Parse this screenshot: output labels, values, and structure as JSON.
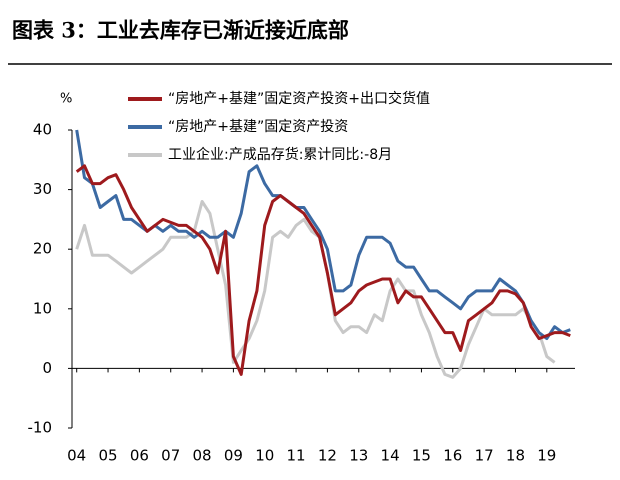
{
  "chart_data": {
    "type": "line",
    "title": "图表 3：工业去库存已渐近接近底部",
    "y_label": "%",
    "x": [
      4,
      4.25,
      4.5,
      4.75,
      5,
      5.25,
      5.5,
      5.75,
      6,
      6.25,
      6.5,
      6.75,
      7,
      7.25,
      7.5,
      7.75,
      8,
      8.25,
      8.5,
      8.75,
      9,
      9.25,
      9.5,
      9.75,
      10,
      10.25,
      10.5,
      10.75,
      11,
      11.25,
      11.5,
      11.75,
      12,
      12.25,
      12.5,
      12.75,
      13,
      13.25,
      13.5,
      13.75,
      14,
      14.25,
      14.5,
      14.75,
      15,
      15.25,
      15.5,
      15.75,
      16,
      16.25,
      16.5,
      16.75,
      17,
      17.25,
      17.5,
      17.75,
      18,
      18.25,
      18.5,
      18.75,
      19,
      19.25,
      19.5,
      19.75
    ],
    "xlim": [
      3.85,
      19.9
    ],
    "xticks": [
      {
        "value": 4,
        "label": "04"
      },
      {
        "value": 5,
        "label": "05"
      },
      {
        "value": 6,
        "label": "06"
      },
      {
        "value": 7,
        "label": "07"
      },
      {
        "value": 8,
        "label": "08"
      },
      {
        "value": 9,
        "label": "09"
      },
      {
        "value": 10,
        "label": "10"
      },
      {
        "value": 11,
        "label": "11"
      },
      {
        "value": 12,
        "label": "12"
      },
      {
        "value": 13,
        "label": "13"
      },
      {
        "value": 14,
        "label": "14"
      },
      {
        "value": 15,
        "label": "15"
      },
      {
        "value": 16,
        "label": "16"
      },
      {
        "value": 17,
        "label": "17"
      },
      {
        "value": 18,
        "label": "18"
      },
      {
        "value": 19,
        "label": "19"
      }
    ],
    "ylim": [
      -10,
      40
    ],
    "yticks": [
      -10,
      0,
      10,
      20,
      30,
      40
    ],
    "series": [
      {
        "name": "“房地产+基建”固定资产投资+出口交货值",
        "color": "#9e1a1d",
        "values": [
          33,
          34,
          31,
          31,
          32,
          32.5,
          30,
          27,
          25,
          23,
          24,
          25,
          24.5,
          24,
          24,
          23,
          22,
          20,
          16,
          23,
          2,
          -1,
          8,
          13,
          24,
          28,
          29,
          28,
          27,
          26,
          24,
          22,
          16,
          9,
          10,
          11,
          13,
          14,
          14.5,
          15,
          15,
          11,
          13,
          12,
          12,
          10,
          8,
          6,
          6,
          3,
          8,
          9,
          10,
          11,
          13,
          13,
          12.5,
          11,
          7,
          5,
          5.5,
          6,
          6,
          5.5
        ]
      },
      {
        "name": "“房地产+基建”固定资产投资",
        "color": "#3c6aa3",
        "values": [
          40,
          32,
          31,
          27,
          28,
          29,
          25,
          25,
          24,
          23,
          24,
          23,
          24,
          23,
          23,
          22,
          23,
          22,
          22,
          23,
          22,
          26,
          33,
          34,
          31,
          29,
          29,
          28,
          27,
          27,
          25,
          23,
          20,
          13,
          13,
          14,
          19,
          22,
          22,
          22,
          21,
          18,
          17,
          17,
          15,
          13,
          13,
          12,
          11,
          10,
          12,
          13,
          13,
          13,
          15,
          14,
          13,
          11,
          8,
          6,
          5,
          7,
          6,
          6.5
        ]
      },
      {
        "name": "工业企业:产成品存货:累计同比:-8月",
        "color": "#c8c8c8",
        "values": [
          20,
          24,
          19,
          19,
          19,
          18,
          17,
          16,
          17,
          18,
          19,
          20,
          22,
          22,
          22,
          23,
          28,
          26,
          20,
          14,
          1,
          3,
          5,
          8,
          13,
          22,
          23,
          22,
          24,
          25,
          23,
          22,
          16,
          8,
          6,
          7,
          7,
          6,
          9,
          8,
          13,
          15,
          13,
          13,
          9,
          6,
          2,
          -1,
          -1.5,
          0,
          4,
          7,
          10,
          9,
          9,
          9,
          9,
          10,
          8,
          6,
          2,
          1,
          null,
          null
        ]
      }
    ]
  }
}
